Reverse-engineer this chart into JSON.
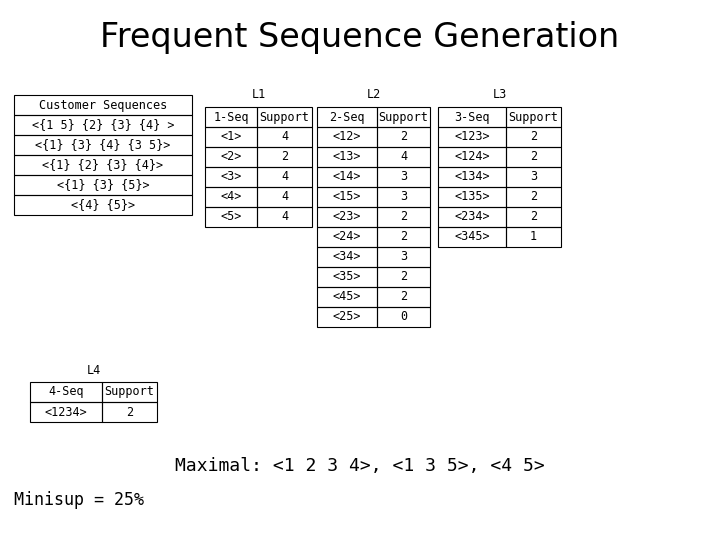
{
  "title": "Frequent Sequence Generation",
  "background_color": "#ffffff",
  "font_family": "DejaVu Sans Mono",
  "title_font": "DejaVu Sans",
  "customer_sequences_label": "Customer Sequences",
  "customer_sequences": [
    "<{1 5} {2} {3} {4} >",
    "<{1} {3} {4} {3 5}>",
    "<{1} {2} {3} {4}>",
    "<{1} {3} {5}>",
    "<{4} {5}>"
  ],
  "l1_label": "L1",
  "l1_headers": [
    "1-Seq",
    "Support"
  ],
  "l1_data": [
    [
      "<1>",
      "4"
    ],
    [
      "<2>",
      "2"
    ],
    [
      "<3>",
      "4"
    ],
    [
      "<4>",
      "4"
    ],
    [
      "<5>",
      "4"
    ]
  ],
  "l2_label": "L2",
  "l2_headers": [
    "2-Seq",
    "Support"
  ],
  "l2_data": [
    [
      "<12>",
      "2"
    ],
    [
      "<13>",
      "4"
    ],
    [
      "<14>",
      "3"
    ],
    [
      "<15>",
      "3"
    ],
    [
      "<23>",
      "2"
    ],
    [
      "<24>",
      "2"
    ],
    [
      "<34>",
      "3"
    ],
    [
      "<35>",
      "2"
    ],
    [
      "<45>",
      "2"
    ],
    [
      "<25>",
      "0"
    ]
  ],
  "l3_label": "L3",
  "l3_headers": [
    "3-Seq",
    "Support"
  ],
  "l3_data": [
    [
      "<123>",
      "2"
    ],
    [
      "<124>",
      "2"
    ],
    [
      "<134>",
      "3"
    ],
    [
      "<135>",
      "2"
    ],
    [
      "<234>",
      "2"
    ],
    [
      "<345>",
      "1"
    ]
  ],
  "l4_label": "L4",
  "l4_headers": [
    "4-Seq",
    "Support"
  ],
  "l4_data": [
    [
      "<1234>",
      "2"
    ]
  ],
  "maximal_text": "Maximal: <1 2 3 4>, <1 3 5>, <4 5>",
  "minisup_text": "Minisup = 25%"
}
